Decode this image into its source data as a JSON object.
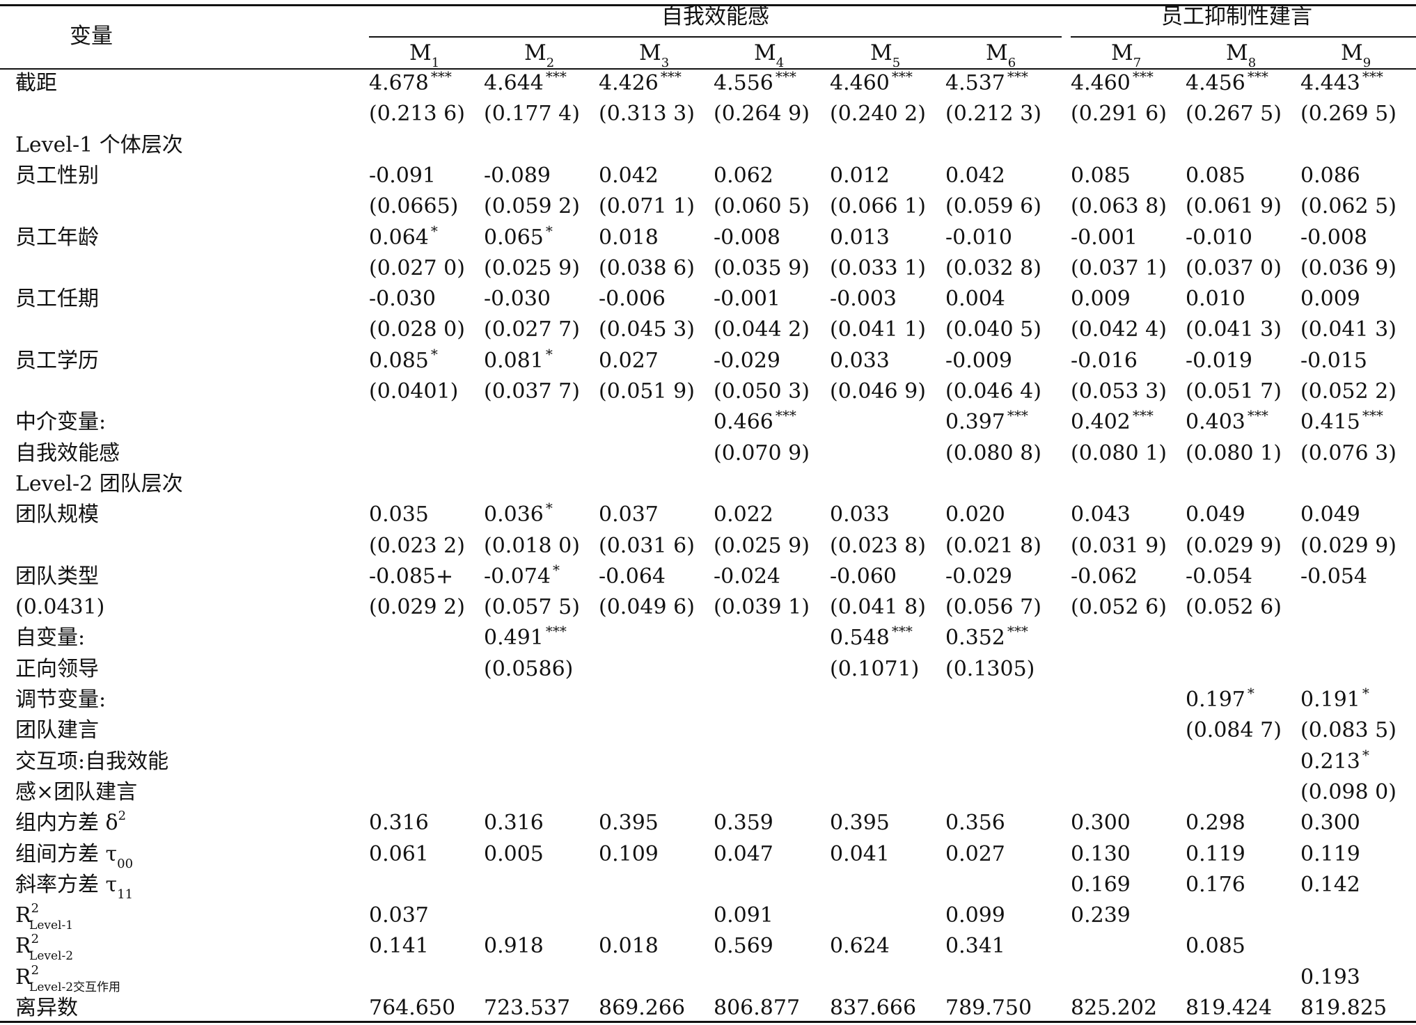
{
  "header": {
    "var_label": "变量",
    "group1": "自我效能感",
    "group2": "员工抑制性建言",
    "models": [
      "M",
      "M",
      "M",
      "M",
      "M",
      "M",
      "M",
      "M",
      "M"
    ],
    "model_subs": [
      "1",
      "2",
      "3",
      "4",
      "5",
      "6",
      "7",
      "8",
      "9"
    ]
  },
  "rows": [
    {
      "label": "截距",
      "cells": [
        [
          "4.678",
          "***"
        ],
        [
          "4.644",
          "***"
        ],
        [
          "4.426",
          "***"
        ],
        [
          "4.556",
          "***"
        ],
        [
          "4.460",
          "***"
        ],
        [
          "4.537",
          "***"
        ],
        [
          "4.460",
          "***"
        ],
        [
          "4.456",
          "***"
        ],
        [
          "4.443",
          "***"
        ]
      ]
    },
    {
      "label": "",
      "cells": [
        [
          "(0.213 6)",
          ""
        ],
        [
          "(0.177 4)",
          ""
        ],
        [
          "(0.313 3)",
          ""
        ],
        [
          "(0.264 9)",
          ""
        ],
        [
          "(0.240 2)",
          ""
        ],
        [
          "(0.212 3)",
          ""
        ],
        [
          "(0.291 6)",
          ""
        ],
        [
          "(0.267 5)",
          ""
        ],
        [
          "(0.269 5)",
          ""
        ]
      ]
    },
    {
      "label": "Level-1 个体层次",
      "cells": []
    },
    {
      "label": "员工性别",
      "cells": [
        [
          "-0.091",
          ""
        ],
        [
          "-0.089",
          ""
        ],
        [
          "0.042",
          ""
        ],
        [
          "0.062",
          ""
        ],
        [
          "0.012",
          ""
        ],
        [
          "0.042",
          ""
        ],
        [
          "0.085",
          ""
        ],
        [
          "0.085",
          ""
        ],
        [
          "0.086",
          ""
        ]
      ]
    },
    {
      "label": "",
      "cells": [
        [
          "(0.0665)",
          ""
        ],
        [
          "(0.059 2)",
          ""
        ],
        [
          "(0.071 1)",
          ""
        ],
        [
          "(0.060 5)",
          ""
        ],
        [
          "(0.066 1)",
          ""
        ],
        [
          "(0.059 6)",
          ""
        ],
        [
          "(0.063 8)",
          ""
        ],
        [
          "(0.061 9)",
          ""
        ],
        [
          "(0.062 5)",
          ""
        ]
      ]
    },
    {
      "label": "员工年龄",
      "cells": [
        [
          "0.064",
          "*"
        ],
        [
          "0.065",
          "*"
        ],
        [
          "0.018",
          ""
        ],
        [
          "-0.008",
          ""
        ],
        [
          "0.013",
          ""
        ],
        [
          "-0.010",
          ""
        ],
        [
          "-0.001",
          ""
        ],
        [
          "-0.010",
          ""
        ],
        [
          "-0.008",
          ""
        ]
      ]
    },
    {
      "label": "",
      "cells": [
        [
          "(0.027 0)",
          ""
        ],
        [
          "(0.025 9)",
          ""
        ],
        [
          "(0.038 6)",
          ""
        ],
        [
          "(0.035 9)",
          ""
        ],
        [
          "(0.033 1)",
          ""
        ],
        [
          "(0.032 8)",
          ""
        ],
        [
          "(0.037 1)",
          ""
        ],
        [
          "(0.037 0)",
          ""
        ],
        [
          "(0.036 9)",
          ""
        ]
      ]
    },
    {
      "label": "员工任期",
      "cells": [
        [
          "-0.030",
          ""
        ],
        [
          "-0.030",
          ""
        ],
        [
          "-0.006",
          ""
        ],
        [
          "-0.001",
          ""
        ],
        [
          "-0.003",
          ""
        ],
        [
          "0.004",
          ""
        ],
        [
          "0.009",
          ""
        ],
        [
          "0.010",
          ""
        ],
        [
          "0.009",
          ""
        ]
      ]
    },
    {
      "label": "",
      "cells": [
        [
          "(0.028 0)",
          ""
        ],
        [
          "(0.027 7)",
          ""
        ],
        [
          "(0.045 3)",
          ""
        ],
        [
          "(0.044 2)",
          ""
        ],
        [
          "(0.041 1)",
          ""
        ],
        [
          "(0.040 5)",
          ""
        ],
        [
          "(0.042 4)",
          ""
        ],
        [
          "(0.041 3)",
          ""
        ],
        [
          "(0.041 3)",
          ""
        ]
      ]
    },
    {
      "label": "员工学历",
      "cells": [
        [
          "0.085",
          "*"
        ],
        [
          "0.081",
          "*"
        ],
        [
          "0.027",
          ""
        ],
        [
          "-0.029",
          ""
        ],
        [
          "0.033",
          ""
        ],
        [
          "-0.009",
          ""
        ],
        [
          "-0.016",
          ""
        ],
        [
          "-0.019",
          ""
        ],
        [
          "-0.015",
          ""
        ]
      ]
    },
    {
      "label": "",
      "cells": [
        [
          "(0.0401)",
          ""
        ],
        [
          "(0.037 7)",
          ""
        ],
        [
          "(0.051 9)",
          ""
        ],
        [
          "(0.050 3)",
          ""
        ],
        [
          "(0.046 9)",
          ""
        ],
        [
          "(0.046 4)",
          ""
        ],
        [
          "(0.053 3)",
          ""
        ],
        [
          "(0.051 7)",
          ""
        ],
        [
          "(0.052 2)",
          ""
        ]
      ]
    },
    {
      "label": "中介变量:",
      "cells": [
        [
          "",
          ""
        ],
        [
          "",
          ""
        ],
        [
          "",
          ""
        ],
        [
          "0.466",
          "***"
        ],
        [
          "",
          ""
        ],
        [
          "0.397",
          "***"
        ],
        [
          "0.402",
          "***"
        ],
        [
          "0.403",
          "***"
        ],
        [
          "0.415",
          "***"
        ]
      ]
    },
    {
      "label": "自我效能感",
      "cells": [
        [
          "",
          ""
        ],
        [
          "",
          ""
        ],
        [
          "",
          ""
        ],
        [
          "(0.070 9)",
          ""
        ],
        [
          "",
          ""
        ],
        [
          "(0.080 8)",
          ""
        ],
        [
          "(0.080 1)",
          ""
        ],
        [
          "(0.080 1)",
          ""
        ],
        [
          "(0.076 3)",
          ""
        ]
      ]
    },
    {
      "label": "Level-2 团队层次",
      "cells": []
    },
    {
      "label": "团队规模",
      "cells": [
        [
          "0.035",
          ""
        ],
        [
          "0.036",
          "*"
        ],
        [
          "0.037",
          ""
        ],
        [
          "0.022",
          ""
        ],
        [
          "0.033",
          ""
        ],
        [
          "0.020",
          ""
        ],
        [
          "0.043",
          ""
        ],
        [
          "0.049",
          ""
        ],
        [
          "0.049",
          ""
        ]
      ]
    },
    {
      "label": "",
      "cells": [
        [
          "(0.023 2)",
          ""
        ],
        [
          "(0.018 0)",
          ""
        ],
        [
          "(0.031 6)",
          ""
        ],
        [
          "(0.025 9)",
          ""
        ],
        [
          "(0.023 8)",
          ""
        ],
        [
          "(0.021 8)",
          ""
        ],
        [
          "(0.031 9)",
          ""
        ],
        [
          "(0.029 9)",
          ""
        ],
        [
          "(0.029 9)",
          ""
        ]
      ]
    },
    {
      "label": "团队类型",
      "cells": [
        [
          "-0.085+",
          ""
        ],
        [
          "-0.074",
          "*"
        ],
        [
          "-0.064",
          ""
        ],
        [
          "-0.024",
          ""
        ],
        [
          "-0.060",
          ""
        ],
        [
          "-0.029",
          ""
        ],
        [
          "-0.062",
          ""
        ],
        [
          "-0.054",
          ""
        ],
        [
          "-0.054",
          ""
        ]
      ]
    },
    {
      "label": "(0.0431)",
      "cells": [
        [
          "(0.029 2)",
          ""
        ],
        [
          "(0.057 5)",
          ""
        ],
        [
          "(0.049 6)",
          ""
        ],
        [
          "(0.039 1)",
          ""
        ],
        [
          "(0.041 8)",
          ""
        ],
        [
          "(0.056 7)",
          ""
        ],
        [
          "(0.052 6)",
          ""
        ],
        [
          "(0.052 6)",
          ""
        ],
        [
          "",
          ""
        ]
      ]
    },
    {
      "label": "自变量:",
      "cells": [
        [
          "",
          ""
        ],
        [
          "0.491",
          "***"
        ],
        [
          "",
          ""
        ],
        [
          "",
          ""
        ],
        [
          "0.548",
          "***"
        ],
        [
          "0.352",
          "***"
        ],
        [
          "",
          ""
        ],
        [
          "",
          ""
        ],
        [
          "",
          ""
        ]
      ]
    },
    {
      "label": "正向领导",
      "cells": [
        [
          "",
          ""
        ],
        [
          "(0.0586)",
          ""
        ],
        [
          "",
          ""
        ],
        [
          "",
          ""
        ],
        [
          "(0.1071)",
          ""
        ],
        [
          "(0.1305)",
          ""
        ],
        [
          "",
          ""
        ],
        [
          "",
          ""
        ],
        [
          "",
          ""
        ]
      ]
    },
    {
      "label": "调节变量:",
      "cells": [
        [
          "",
          ""
        ],
        [
          "",
          ""
        ],
        [
          "",
          ""
        ],
        [
          "",
          ""
        ],
        [
          "",
          ""
        ],
        [
          "",
          ""
        ],
        [
          "",
          ""
        ],
        [
          "0.197",
          "*"
        ],
        [
          "0.191",
          "*"
        ]
      ]
    },
    {
      "label": "团队建言",
      "cells": [
        [
          "",
          ""
        ],
        [
          "",
          ""
        ],
        [
          "",
          ""
        ],
        [
          "",
          ""
        ],
        [
          "",
          ""
        ],
        [
          "",
          ""
        ],
        [
          "",
          ""
        ],
        [
          "(0.084 7)",
          ""
        ],
        [
          "(0.083 5)",
          ""
        ]
      ]
    },
    {
      "label": "交互项:自我效能",
      "cells": [
        [
          "",
          ""
        ],
        [
          "",
          ""
        ],
        [
          "",
          ""
        ],
        [
          "",
          ""
        ],
        [
          "",
          ""
        ],
        [
          "",
          ""
        ],
        [
          "",
          ""
        ],
        [
          "",
          ""
        ],
        [
          "0.213",
          "*"
        ]
      ]
    },
    {
      "label": "感×团队建言",
      "cells": [
        [
          "",
          ""
        ],
        [
          "",
          ""
        ],
        [
          "",
          ""
        ],
        [
          "",
          ""
        ],
        [
          "",
          ""
        ],
        [
          "",
          ""
        ],
        [
          "",
          ""
        ],
        [
          "",
          ""
        ],
        [
          "(0.098 0)",
          ""
        ]
      ]
    },
    {
      "label": "组内方差 δ",
      "label_sup": "2",
      "cells": [
        [
          "0.316",
          ""
        ],
        [
          "0.316",
          ""
        ],
        [
          "0.395",
          ""
        ],
        [
          "0.359",
          ""
        ],
        [
          "0.395",
          ""
        ],
        [
          "0.356",
          ""
        ],
        [
          "0.300",
          ""
        ],
        [
          "0.298",
          ""
        ],
        [
          "0.300",
          ""
        ]
      ]
    },
    {
      "label": "组间方差 τ",
      "label_sub": "00",
      "cells": [
        [
          "0.061",
          ""
        ],
        [
          "0.005",
          ""
        ],
        [
          "0.109",
          ""
        ],
        [
          "0.047",
          ""
        ],
        [
          "0.041",
          ""
        ],
        [
          "0.027",
          ""
        ],
        [
          "0.130",
          ""
        ],
        [
          "0.119",
          ""
        ],
        [
          "0.119",
          ""
        ]
      ]
    },
    {
      "label": "斜率方差 τ",
      "label_sub": "11",
      "cells": [
        [
          "",
          ""
        ],
        [
          "",
          ""
        ],
        [
          "",
          ""
        ],
        [
          "",
          ""
        ],
        [
          "",
          ""
        ],
        [
          "",
          ""
        ],
        [
          "0.169",
          ""
        ],
        [
          "0.176",
          ""
        ],
        [
          "0.142",
          ""
        ]
      ]
    },
    {
      "label": "R",
      "label_sup": "2",
      "label_sub": "Level-1",
      "cells": [
        [
          "0.037",
          ""
        ],
        [
          "",
          ""
        ],
        [
          "",
          ""
        ],
        [
          "0.091",
          ""
        ],
        [
          "",
          ""
        ],
        [
          "0.099",
          ""
        ],
        [
          "0.239",
          ""
        ],
        [
          "",
          ""
        ],
        [
          "",
          ""
        ]
      ]
    },
    {
      "label": "R",
      "label_sup": "2",
      "label_sub": "Level-2",
      "cells": [
        [
          "0.141",
          ""
        ],
        [
          "0.918",
          ""
        ],
        [
          "0.018",
          ""
        ],
        [
          "0.569",
          ""
        ],
        [
          "0.624",
          ""
        ],
        [
          "0.341",
          ""
        ],
        [
          "",
          ""
        ],
        [
          "0.085",
          ""
        ],
        [
          "",
          ""
        ]
      ]
    },
    {
      "label": "R",
      "label_sup": "2",
      "label_sub": "Level-2交互作用",
      "cells": [
        [
          "",
          ""
        ],
        [
          "",
          ""
        ],
        [
          "",
          ""
        ],
        [
          "",
          ""
        ],
        [
          "",
          ""
        ],
        [
          "",
          ""
        ],
        [
          "",
          ""
        ],
        [
          "",
          ""
        ],
        [
          "0.193",
          ""
        ]
      ]
    },
    {
      "label": "离异数",
      "cells": [
        [
          "764.650",
          ""
        ],
        [
          "723.537",
          ""
        ],
        [
          "869.266",
          ""
        ],
        [
          "806.877",
          ""
        ],
        [
          "837.666",
          ""
        ],
        [
          "789.750",
          ""
        ],
        [
          "825.202",
          ""
        ],
        [
          "819.424",
          ""
        ],
        [
          "819.825",
          ""
        ]
      ]
    }
  ]
}
